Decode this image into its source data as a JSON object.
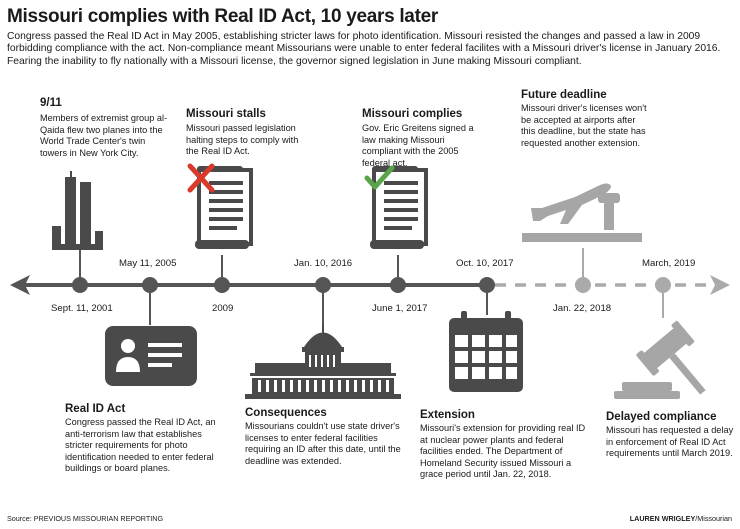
{
  "title": "Missouri complies with Real ID Act, 10 years later",
  "intro": "Congress passed the Real ID Act in May 2005, establishing stricter laws for photo identification. Missouri resisted the changes and passed a law in 2009 forbidding compliance with the act. Non-compliance meant Missourians were unable to enter federal facilites with a Missouri driver's license in January 2016. Fearing the inability to fly nationally with a Missouri license, the governor signed legislation in June making Missouri compliant.",
  "events": {
    "sept11": {
      "heading": "9/11",
      "text": "Members of extremist group al-Qaida flew two planes into the World Trade Center's twin towers in New York City.",
      "date": "Sept. 11, 2001"
    },
    "real_id": {
      "heading": "Real ID Act",
      "text": "Congress passed the Real ID Act, an anti-terrorism law that establishes stricter requirements for photo identification needed to enter federal buildings or board planes.",
      "date": "May 11, 2005"
    },
    "stalls": {
      "heading": "Missouri stalls",
      "text": "Missouri passed legislation halting steps to comply with the Real ID Act.",
      "date": "2009"
    },
    "consequences": {
      "heading": "Consequences",
      "text": "Missourians couldn't use state driver's licenses to enter federal facilities requiring an ID after this date, until the deadline was extended.",
      "date": "Jan. 10, 2016"
    },
    "complies": {
      "heading": "Missouri complies",
      "text": "Gov. Eric Greitens signed a law making Missouri compliant with the 2005 federal act.",
      "date": "June 1, 2017"
    },
    "extension": {
      "heading": "Extension",
      "text": "Missouri's extension for providing real ID at nuclear power plants and federal facilities ended. The Department of Homeland Security issued Missouri a grace period until Jan. 22, 2018.",
      "date": "Oct. 10, 2017"
    },
    "future": {
      "heading": "Future deadline",
      "text": "Missouri driver's licenses won't be accepted at airports after this deadline, but the state has requested another extension.",
      "date": "Jan. 22, 2018"
    },
    "delayed": {
      "heading": "Delayed compliance",
      "text": "Missouri has requested a delay in enforcement of Real ID Act requirements until March 2019.",
      "date": "March, 2019"
    }
  },
  "footer": {
    "source": "Source: PREVIOUS MISSOURIAN REPORTING",
    "credit_name": "LAUREN WRIGLEY",
    "credit_org": "/Missourian"
  },
  "colors": {
    "line": "#555555",
    "future": "#aaaaaa",
    "icon": "#4a4a4a",
    "icon_light": "#a6a6a6",
    "cross": "#d93a2b",
    "check": "#5aa54a"
  }
}
